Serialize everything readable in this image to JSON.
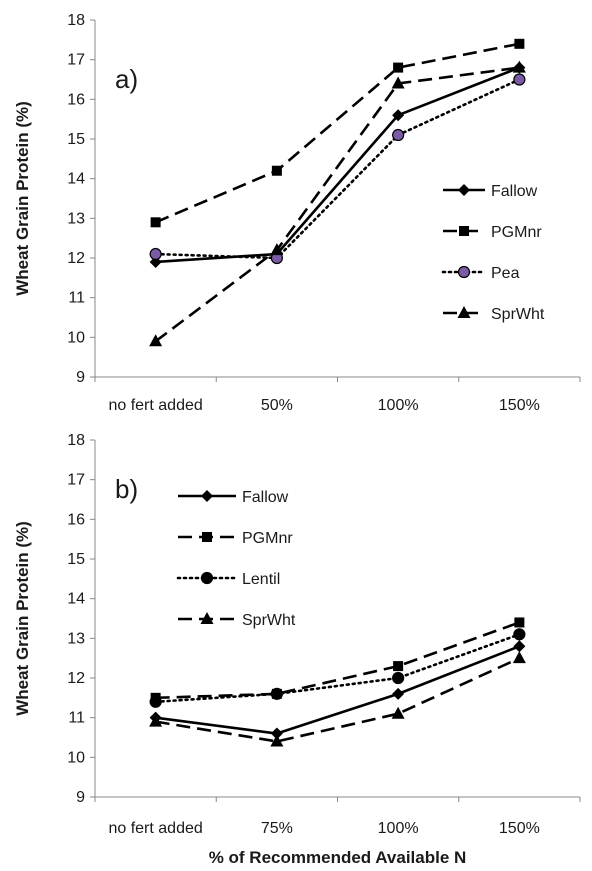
{
  "chart_data": [
    {
      "type": "line",
      "panel_label": "a)",
      "categories": [
        "no fert added",
        "50%",
        "100%",
        "150%"
      ],
      "ylabel": "Wheat Grain Protein (%)",
      "xlabel": "",
      "ylim": [
        9,
        18
      ],
      "yticks": [
        9,
        10,
        11,
        12,
        13,
        14,
        15,
        16,
        17,
        18
      ],
      "grid": false,
      "legend_position": "right-middle",
      "series": [
        {
          "name": "Fallow",
          "values": [
            11.9,
            12.1,
            15.6,
            16.8
          ],
          "line": "solid",
          "marker": "diamond",
          "color": "#000000",
          "marker_fill": "#000000"
        },
        {
          "name": "PGMnr",
          "values": [
            12.9,
            14.2,
            16.8,
            17.4
          ],
          "line": "dashed",
          "marker": "square",
          "color": "#000000",
          "marker_fill": "#000000"
        },
        {
          "name": "Pea",
          "values": [
            12.1,
            12.0,
            15.1,
            16.5
          ],
          "line": "dotted",
          "marker": "circle",
          "color": "#000000",
          "marker_fill": "#7b5aa6"
        },
        {
          "name": "SprWht",
          "values": [
            9.9,
            12.2,
            16.4,
            16.8
          ],
          "line": "dashed",
          "marker": "triangle",
          "color": "#000000",
          "marker_fill": "#000000"
        }
      ]
    },
    {
      "type": "line",
      "panel_label": "b)",
      "categories": [
        "no fert added",
        "75%",
        "100%",
        "150%"
      ],
      "ylabel": "Wheat Grain Protein (%)",
      "xlabel": "% of Recommended Available N",
      "ylim": [
        9,
        18
      ],
      "yticks": [
        9,
        10,
        11,
        12,
        13,
        14,
        15,
        16,
        17,
        18
      ],
      "grid": false,
      "legend_position": "top-left",
      "series": [
        {
          "name": "Fallow",
          "values": [
            11.0,
            10.6,
            11.6,
            12.8
          ],
          "line": "solid",
          "marker": "diamond",
          "color": "#000000",
          "marker_fill": "#000000"
        },
        {
          "name": "PGMnr",
          "values": [
            11.5,
            11.6,
            12.3,
            13.4
          ],
          "line": "dashed",
          "marker": "square",
          "color": "#000000",
          "marker_fill": "#000000"
        },
        {
          "name": "Lentil",
          "values": [
            11.4,
            11.6,
            12.0,
            13.1
          ],
          "line": "dotted",
          "marker": "circle",
          "color": "#000000",
          "marker_fill": "#000000"
        },
        {
          "name": "SprWht",
          "values": [
            10.9,
            10.4,
            11.1,
            12.5
          ],
          "line": "dashed",
          "marker": "triangle",
          "color": "#000000",
          "marker_fill": "#000000"
        }
      ]
    }
  ]
}
